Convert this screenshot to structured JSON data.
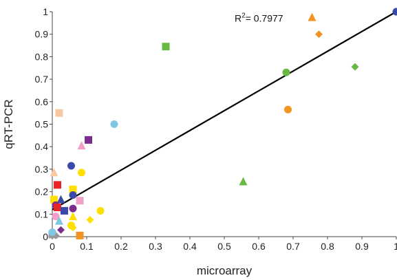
{
  "chart_data": {
    "type": "scatter",
    "xlabel": "microarray",
    "ylabel": "qRT-PCR",
    "xlim": [
      0,
      1
    ],
    "ylim": [
      0,
      1
    ],
    "x_ticks": [
      "0",
      "0.1",
      "0.2",
      "0.3",
      "0.4",
      "0.5",
      "0.6",
      "0.7",
      "0.8",
      "0.9",
      "1"
    ],
    "y_ticks": [
      "0",
      "0.1",
      "0.2",
      "0.3",
      "0.4",
      "0.5",
      "0.6",
      "0.7",
      "0.8",
      "0.9",
      "1"
    ],
    "grid": false,
    "annotation": {
      "r_squared_prefix": "R",
      "r_squared_sup": "2",
      "r_squared_value": "= 0.7977",
      "anchor": [
        0.53,
        0.955
      ]
    },
    "trendline": {
      "x": [
        0,
        1
      ],
      "y": [
        0.12,
        1.0
      ],
      "color": "#000000"
    },
    "points": [
      {
        "x": 1.0,
        "y": 1.0,
        "shape": "circle",
        "color": "#3b4aa8"
      },
      {
        "x": 0.755,
        "y": 0.975,
        "shape": "triangle",
        "color": "#f39322"
      },
      {
        "x": 0.775,
        "y": 0.9,
        "shape": "diamond",
        "color": "#f39322"
      },
      {
        "x": 0.33,
        "y": 0.845,
        "shape": "square",
        "color": "#69b843"
      },
      {
        "x": 0.88,
        "y": 0.755,
        "shape": "diamond",
        "color": "#69b843"
      },
      {
        "x": 0.68,
        "y": 0.73,
        "shape": "circle",
        "color": "#69b843"
      },
      {
        "x": 0.685,
        "y": 0.565,
        "shape": "circle",
        "color": "#f39322"
      },
      {
        "x": 0.02,
        "y": 0.55,
        "shape": "square",
        "color": "#f8c8a0"
      },
      {
        "x": 0.18,
        "y": 0.5,
        "shape": "circle",
        "color": "#7ec8e3"
      },
      {
        "x": 0.105,
        "y": 0.43,
        "shape": "square",
        "color": "#7b2d8e"
      },
      {
        "x": 0.085,
        "y": 0.405,
        "shape": "triangle",
        "color": "#f0a0c8"
      },
      {
        "x": 0.055,
        "y": 0.315,
        "shape": "circle",
        "color": "#3b4aa8"
      },
      {
        "x": 0.005,
        "y": 0.285,
        "shape": "triangle",
        "color": "#f8c8a0"
      },
      {
        "x": 0.085,
        "y": 0.285,
        "shape": "circle",
        "color": "#ffe000"
      },
      {
        "x": 0.555,
        "y": 0.245,
        "shape": "triangle",
        "color": "#69b843"
      },
      {
        "x": 0.015,
        "y": 0.23,
        "shape": "square",
        "color": "#e8232a"
      },
      {
        "x": 0.06,
        "y": 0.21,
        "shape": "square",
        "color": "#ffe000"
      },
      {
        "x": 0.06,
        "y": 0.185,
        "shape": "circle",
        "color": "#3b4aa8"
      },
      {
        "x": 0.005,
        "y": 0.165,
        "shape": "square",
        "color": "#ffe000"
      },
      {
        "x": 0.025,
        "y": 0.165,
        "shape": "triangle",
        "color": "#3b4aa8"
      },
      {
        "x": 0.08,
        "y": 0.16,
        "shape": "square",
        "color": "#f0a0c8"
      },
      {
        "x": 0.01,
        "y": 0.14,
        "shape": "circle",
        "color": "#7b2d8e"
      },
      {
        "x": 0.015,
        "y": 0.13,
        "shape": "square",
        "color": "#e8232a"
      },
      {
        "x": 0.06,
        "y": 0.125,
        "shape": "circle",
        "color": "#7b2d8e"
      },
      {
        "x": 0.035,
        "y": 0.115,
        "shape": "square",
        "color": "#3b4aa8"
      },
      {
        "x": 0.14,
        "y": 0.115,
        "shape": "circle",
        "color": "#ffe000"
      },
      {
        "x": 0.06,
        "y": 0.09,
        "shape": "triangle",
        "color": "#ffe000"
      },
      {
        "x": 0.01,
        "y": 0.09,
        "shape": "circle",
        "color": "#f0a0c8"
      },
      {
        "x": 0.11,
        "y": 0.075,
        "shape": "diamond",
        "color": "#ffe000"
      },
      {
        "x": 0.02,
        "y": 0.07,
        "shape": "triangle",
        "color": "#7ec8e3"
      },
      {
        "x": 0.055,
        "y": 0.05,
        "shape": "circle",
        "color": "#ffe000"
      },
      {
        "x": 0.06,
        "y": 0.04,
        "shape": "diamond",
        "color": "#ffe000"
      },
      {
        "x": 0.025,
        "y": 0.03,
        "shape": "diamond",
        "color": "#7b2d8e"
      },
      {
        "x": 0.08,
        "y": 0.005,
        "shape": "square",
        "color": "#f39322"
      },
      {
        "x": 0.005,
        "y": 0.01,
        "shape": "triangle",
        "color": "#999999"
      },
      {
        "x": 0.0,
        "y": 0.01,
        "shape": "square",
        "color": "#999999"
      },
      {
        "x": 0.01,
        "y": 0.005,
        "shape": "diamond",
        "color": "#999999"
      },
      {
        "x": 0.0,
        "y": 0.02,
        "shape": "circle",
        "color": "#7ec8e3"
      }
    ]
  }
}
